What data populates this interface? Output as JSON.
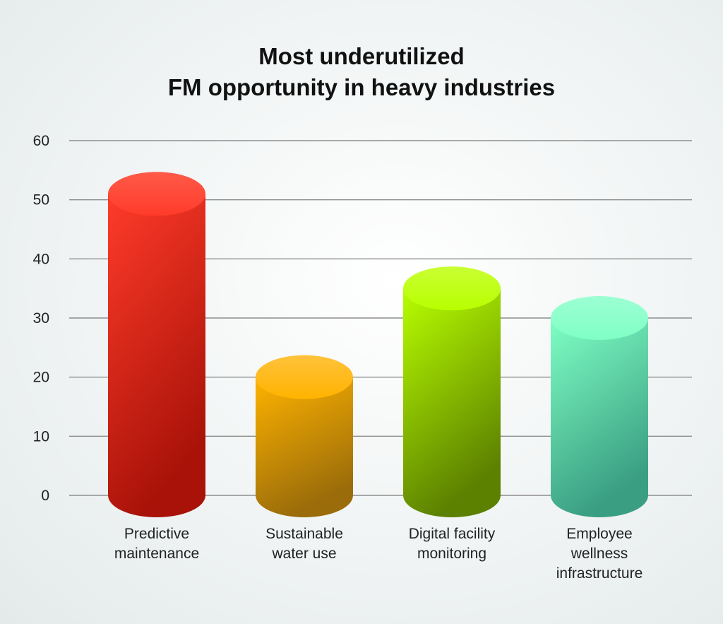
{
  "chart_data": {
    "type": "bar",
    "title": [
      "Most underutilized",
      "FM opportunity in heavy industries"
    ],
    "categories": [
      [
        "Predictive",
        "maintenance"
      ],
      [
        "Sustainable",
        "water use"
      ],
      [
        "Digital facility",
        "monitoring"
      ],
      [
        "Employee",
        "wellness",
        "infrastructure"
      ]
    ],
    "values": [
      51,
      20,
      35,
      30
    ],
    "yticks": [
      0,
      10,
      20,
      30,
      40,
      50,
      60
    ],
    "ylim": [
      0,
      60
    ],
    "grid": true,
    "colors": [
      [
        "#ff3b2a",
        "#a81208",
        "#ff5a48"
      ],
      [
        "#ffb300",
        "#9a6c0a",
        "#ffc23a"
      ],
      [
        "#b8ff00",
        "#5c8000",
        "#c9ff33"
      ],
      [
        "#7fffc4",
        "#3a9e82",
        "#9dffd4"
      ]
    ]
  }
}
